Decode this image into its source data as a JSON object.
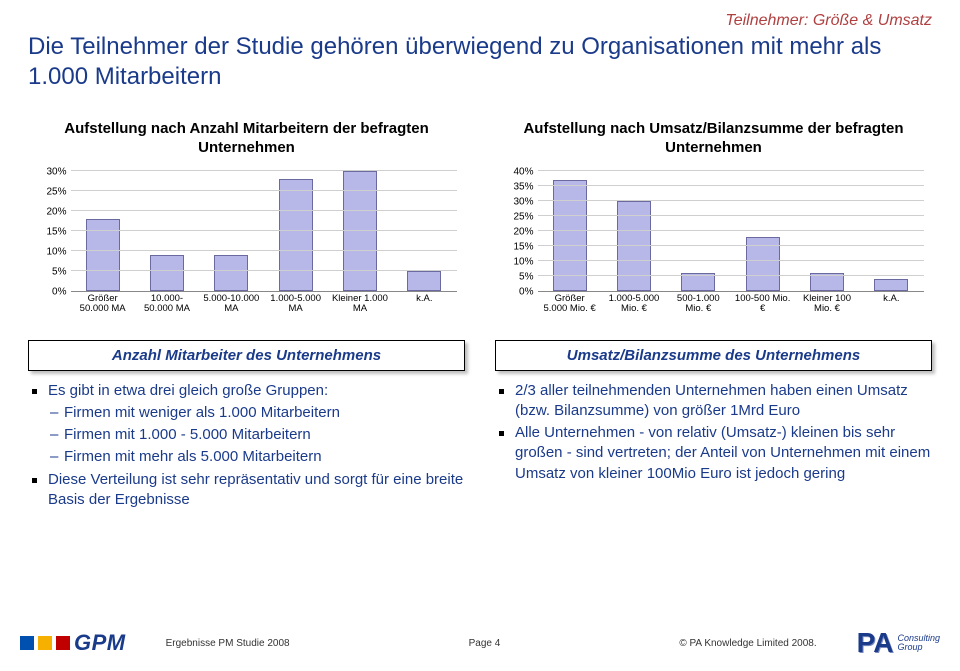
{
  "header": {
    "context": "Teilnehmer: Größe & Umsatz",
    "context_color": "#b04040",
    "title": "Die Teilnehmer der Studie gehören überwiegend zu Organisationen mit mehr als 1.000 Mitarbeitern",
    "title_color": "#1a3a8a"
  },
  "chart_left": {
    "title": "Aufstellung nach Anzahl Mitarbeitern der befragten Unternehmen",
    "type": "bar",
    "ymax": 30,
    "ytick_step": 5,
    "yticks": [
      "0%",
      "5%",
      "10%",
      "15%",
      "20%",
      "25%",
      "30%"
    ],
    "categories": [
      "Größer 50.000 MA",
      "10.000-50.000 MA",
      "5.000-10.000 MA",
      "1.000-5.000 MA",
      "Kleiner 1.000 MA",
      "k.A."
    ],
    "values": [
      18,
      9,
      9,
      28,
      30,
      5
    ],
    "bar_fill": "#b8b8e8",
    "bar_border": "#6a6aa0",
    "grid_color": "#cfcfcf"
  },
  "chart_right": {
    "title": "Aufstellung nach Umsatz/Bilanzsumme der befragten Unternehmen",
    "type": "bar",
    "ymax": 40,
    "ytick_step": 5,
    "yticks": [
      "0%",
      "5%",
      "10%",
      "15%",
      "20%",
      "25%",
      "30%",
      "35%",
      "40%"
    ],
    "categories": [
      "Größer 5.000 Mio. €",
      "1.000-5.000 Mio. €",
      "500-1.000 Mio. €",
      "100-500 Mio. €",
      "Kleiner 100 Mio. €",
      "k.A."
    ],
    "values": [
      37,
      30,
      6,
      18,
      6,
      4
    ],
    "bar_fill": "#b8b8e8",
    "bar_border": "#6a6aa0",
    "grid_color": "#cfcfcf"
  },
  "box_left": {
    "title": "Anzahl Mitarbeiter des Unternehmens",
    "b1": "Es gibt in etwa drei gleich große Gruppen:",
    "s1": "Firmen mit weniger als 1.000 Mitarbeitern",
    "s2": "Firmen mit 1.000 - 5.000 Mitarbeitern",
    "s3": "Firmen mit mehr als 5.000 Mitarbeitern",
    "b2": "Diese Verteilung ist sehr repräsentativ und sorgt für eine breite Basis der Ergebnisse"
  },
  "box_right": {
    "title": "Umsatz/Bilanzsumme des Unternehmens",
    "b1": "2/3 aller teilnehmenden Unternehmen haben einen Umsatz (bzw. Bilanzsumme) von größer 1Mrd Euro",
    "b2": "Alle Unternehmen - von relativ (Umsatz-) kleinen bis sehr großen - sind vertreten; der Anteil von Unternehmen mit einem Umsatz von kleiner 100Mio Euro ist jedoch gering"
  },
  "footer": {
    "gpm": "GPM",
    "gpm_colors": [
      "#0050b0",
      "#f5b000",
      "#c00000"
    ],
    "source": "Ergebnisse PM Studie 2008",
    "page": "Page 4",
    "copyright": "© PA Knowledge Limited 2008.",
    "pa_left": "PA",
    "pa_r1": "Consulting",
    "pa_r2": "Group"
  },
  "text_color": "#1a3a8a"
}
